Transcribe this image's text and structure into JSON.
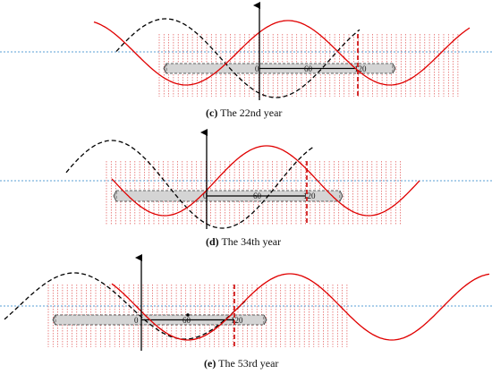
{
  "panels": [
    {
      "id": "c",
      "caption_letter": "(c)",
      "caption_text": " The 22nd year",
      "ticks": [
        "0",
        "60",
        "120"
      ]
    },
    {
      "id": "d",
      "caption_letter": "(d)",
      "caption_text": " The 34th year",
      "ticks": [
        "0",
        "60",
        "120"
      ]
    },
    {
      "id": "e",
      "caption_letter": "(e)",
      "caption_text": " The 53rd year",
      "ticks": [
        "0",
        "60",
        "120"
      ]
    }
  ],
  "colors": {
    "solid_wave": "#e00000",
    "dashed_wave": "#000000",
    "hatch": "#e05050",
    "reference_line": "#5a9fd4",
    "bar_fill": "#d4d4d4",
    "bar_stroke": "#333333",
    "marker": "#cc0000"
  }
}
